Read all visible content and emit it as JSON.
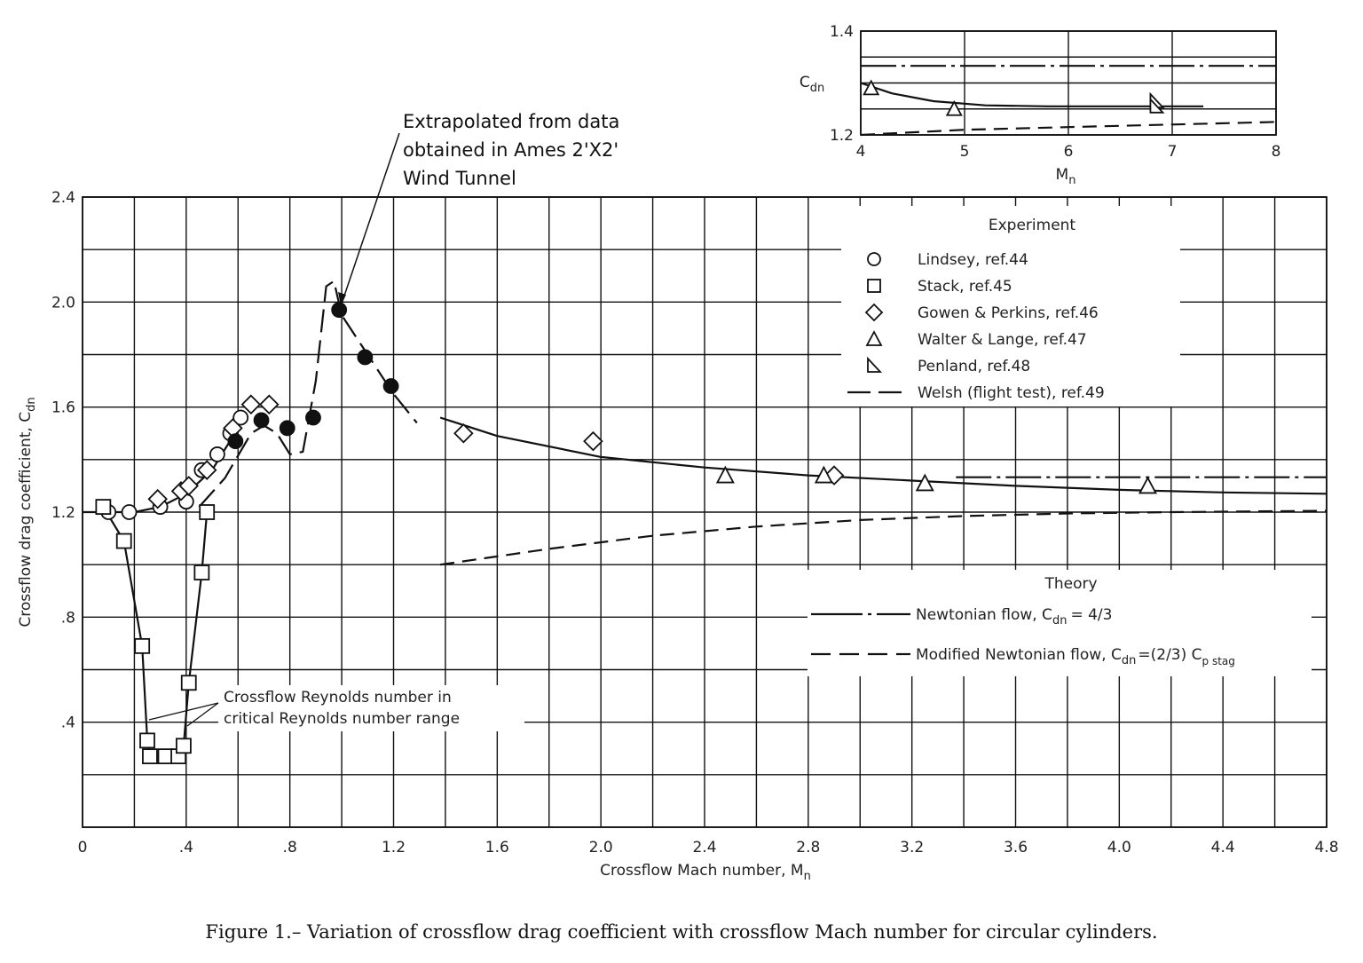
{
  "caption": "Figure 1.– Variation of crossflow drag coefficient with crossflow Mach number for circular cylinders.",
  "chart_data": [
    {
      "type": "scatter",
      "xlabel": "Crossflow Mach number, M",
      "xlabel_sub": "n",
      "ylabel": "Crossflow drag coefficient, C",
      "ylabel_sub": "dn",
      "xlim": [
        0,
        4.8
      ],
      "ylim": [
        0,
        2.4
      ],
      "grid": true,
      "x_ticks": [
        0,
        0.4,
        0.8,
        1.2,
        1.6,
        2.0,
        2.4,
        2.8,
        3.2,
        3.6,
        4.0,
        4.4,
        4.8
      ],
      "x_tick_labels": [
        "0",
        ".4",
        ".8",
        "1.2",
        "1.6",
        "2.0",
        "2.4",
        "2.8",
        "3.2",
        "3.6",
        "4.0",
        "4.4",
        "4.8"
      ],
      "y_ticks": [
        0.4,
        0.8,
        1.2,
        1.6,
        2.0,
        2.4
      ],
      "y_tick_labels": [
        ".4",
        ".8",
        "1.2",
        "1.6",
        "2.0",
        "2.4"
      ],
      "legend_experiment_title": "Experiment",
      "legend_theory_title": "Theory",
      "series": [
        {
          "name": "Lindsey, ref.44",
          "marker": "circle",
          "x": [
            0.1,
            0.18,
            0.3,
            0.4,
            0.46,
            0.52,
            0.57,
            0.61
          ],
          "y": [
            1.2,
            1.2,
            1.22,
            1.24,
            1.36,
            1.42,
            1.5,
            1.56
          ]
        },
        {
          "name": "Stack, ref.45",
          "marker": "square",
          "x": [
            0.08,
            0.16,
            0.23,
            0.25,
            0.26,
            0.32,
            0.37,
            0.39,
            0.41,
            0.46,
            0.48
          ],
          "y": [
            1.22,
            1.09,
            0.69,
            0.33,
            0.27,
            0.27,
            0.27,
            0.31,
            0.55,
            0.97,
            1.2
          ],
          "connected": true
        },
        {
          "name": "Gowen & Perkins, ref.46",
          "marker": "diamond",
          "x": [
            0.29,
            0.38,
            0.41,
            0.48,
            0.58,
            0.65,
            0.72,
            1.47,
            1.97,
            2.9
          ],
          "y": [
            1.25,
            1.28,
            1.3,
            1.36,
            1.52,
            1.61,
            1.61,
            1.5,
            1.47,
            1.34
          ]
        },
        {
          "name": "Walter & Lange, ref.47",
          "marker": "triangle",
          "x": [
            2.48,
            2.86,
            3.25,
            4.11
          ],
          "y": [
            1.34,
            1.34,
            1.31,
            1.3
          ]
        },
        {
          "name": "Penland, ref.48",
          "marker": "half-triangle",
          "x": [],
          "y": []
        },
        {
          "name": "Welsh (flight test), ref.49",
          "marker": "filled-circle",
          "x": [
            0.59,
            0.69,
            0.79,
            0.89,
            0.99,
            1.09,
            1.19
          ],
          "y": [
            1.47,
            1.55,
            1.52,
            1.56,
            1.97,
            1.79,
            1.68
          ]
        }
      ],
      "curves": [
        {
          "name": "Subsonic fairing",
          "style": "solid",
          "x": [
            0.0,
            0.1,
            0.2,
            0.3,
            0.4,
            0.5,
            0.55,
            0.6
          ],
          "y": [
            1.2,
            1.2,
            1.2,
            1.22,
            1.27,
            1.36,
            1.44,
            1.52
          ]
        },
        {
          "name": "Welsh fairing",
          "style": "long-dash",
          "x": [
            0.45,
            0.55,
            0.65,
            0.7,
            0.75,
            0.8,
            0.85,
            0.9,
            0.94,
            0.97,
            1.0,
            1.1,
            1.2,
            1.29
          ],
          "y": [
            1.22,
            1.33,
            1.5,
            1.53,
            1.5,
            1.42,
            1.43,
            1.7,
            2.06,
            2.08,
            1.95,
            1.8,
            1.65,
            1.54
          ]
        },
        {
          "name": "Supersonic fairing",
          "style": "solid",
          "x": [
            1.38,
            1.6,
            2.0,
            2.4,
            2.8,
            3.2,
            3.6,
            4.0,
            4.4,
            4.8
          ],
          "y": [
            1.56,
            1.49,
            1.41,
            1.37,
            1.34,
            1.32,
            1.3,
            1.285,
            1.275,
            1.27
          ]
        },
        {
          "name": "Newtonian flow, C_dn = 4/3",
          "style": "dash-dot",
          "x": [
            3.37,
            4.8
          ],
          "y": [
            1.333,
            1.333
          ]
        },
        {
          "name": "Modified Newtonian flow, C_dn = (2/3) C_p stag",
          "style": "short-dash",
          "x": [
            1.38,
            1.8,
            2.2,
            2.6,
            3.0,
            3.4,
            3.8,
            4.2,
            4.8
          ],
          "y": [
            1.0,
            1.06,
            1.11,
            1.145,
            1.17,
            1.185,
            1.195,
            1.2,
            1.205
          ]
        }
      ],
      "theory_legend": [
        {
          "text": "Newtonian flow, C",
          "sub": "dn",
          "tail": "= 4/3"
        },
        {
          "text": "Modified Newtonian flow, C",
          "sub": "dn",
          "tail": "=(2/3) C",
          "sub2": "p stag"
        }
      ],
      "annotations": [
        {
          "lines": [
            "Extrapolated from data",
            "obtained in Ames 2'X2'",
            "Wind Tunnel"
          ]
        },
        {
          "lines": [
            "Crossflow Reynolds number in",
            "critical Reynolds number range"
          ]
        }
      ]
    },
    {
      "type": "scatter",
      "xlabel": "M",
      "xlabel_sub": "n",
      "ylabel": "C",
      "ylabel_sub": "dn",
      "xlim": [
        4,
        8
      ],
      "ylim": [
        1.2,
        1.4
      ],
      "grid": true,
      "x_ticks": [
        4,
        5,
        6,
        7,
        8
      ],
      "x_tick_labels": [
        "4",
        "5",
        "6",
        "7",
        "8"
      ],
      "y_ticks": [
        1.2,
        1.4
      ],
      "y_tick_labels": [
        "1.2",
        "1.4"
      ],
      "series": [
        {
          "name": "Walter & Lange, ref.47",
          "marker": "triangle",
          "x": [
            4.1,
            4.9
          ],
          "y": [
            1.29,
            1.25
          ]
        },
        {
          "name": "Penland, ref.48",
          "marker": "half-triangle",
          "x": [
            6.85,
            6.85
          ],
          "y": [
            1.265,
            1.255
          ]
        }
      ],
      "curves": [
        {
          "name": "Newtonian flow",
          "style": "dash-dot",
          "x": [
            4,
            8
          ],
          "y": [
            1.333,
            1.333
          ]
        },
        {
          "name": "Fairing",
          "style": "solid",
          "x": [
            4.0,
            4.3,
            4.7,
            5.2,
            5.8,
            6.5,
            7.3
          ],
          "y": [
            1.3,
            1.28,
            1.265,
            1.257,
            1.255,
            1.255,
            1.255
          ]
        },
        {
          "name": "Modified Newtonian flow",
          "style": "short-dash",
          "x": [
            4.0,
            5.0,
            6.0,
            7.0,
            8.0
          ],
          "y": [
            1.2,
            1.21,
            1.215,
            1.22,
            1.225
          ]
        }
      ]
    }
  ]
}
